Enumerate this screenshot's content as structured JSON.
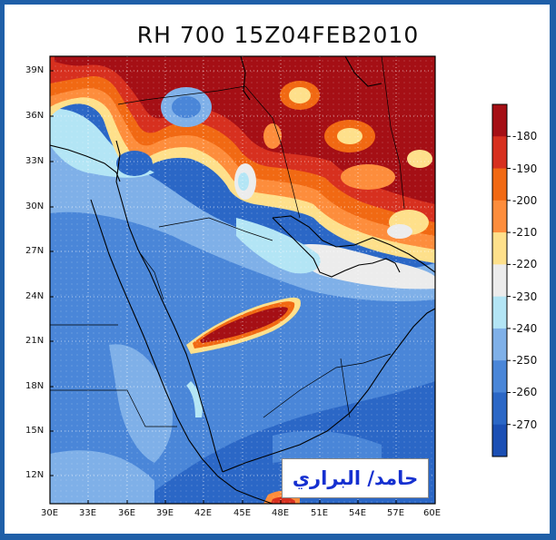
{
  "title": "RH 700  15Z04FEB2010",
  "watermark_text": "حامد/ البراري",
  "lat_labels": [
    "39N",
    "36N",
    "33N",
    "30N",
    "27N",
    "24N",
    "21N",
    "18N",
    "15N",
    "12N"
  ],
  "lon_labels": [
    "30E",
    "33E",
    "36E",
    "39E",
    "42E",
    "45E",
    "48E",
    "51E",
    "54E",
    "57E",
    "60E"
  ],
  "colorbar": {
    "labels": [
      "180",
      "190",
      "200",
      "210",
      "220",
      "230",
      "240",
      "250",
      "260",
      "270"
    ],
    "colors": [
      "#a50f15",
      "#d7301f",
      "#f16913",
      "#fd8d3c",
      "#fee08b",
      "#ececec",
      "#b3e5f5",
      "#7fb0e8",
      "#4a86d8",
      "#2b67c6",
      "#1b4fb4"
    ]
  },
  "colors": {
    "frame": "#1f5fa8",
    "watermark_text": "#1530d0"
  }
}
